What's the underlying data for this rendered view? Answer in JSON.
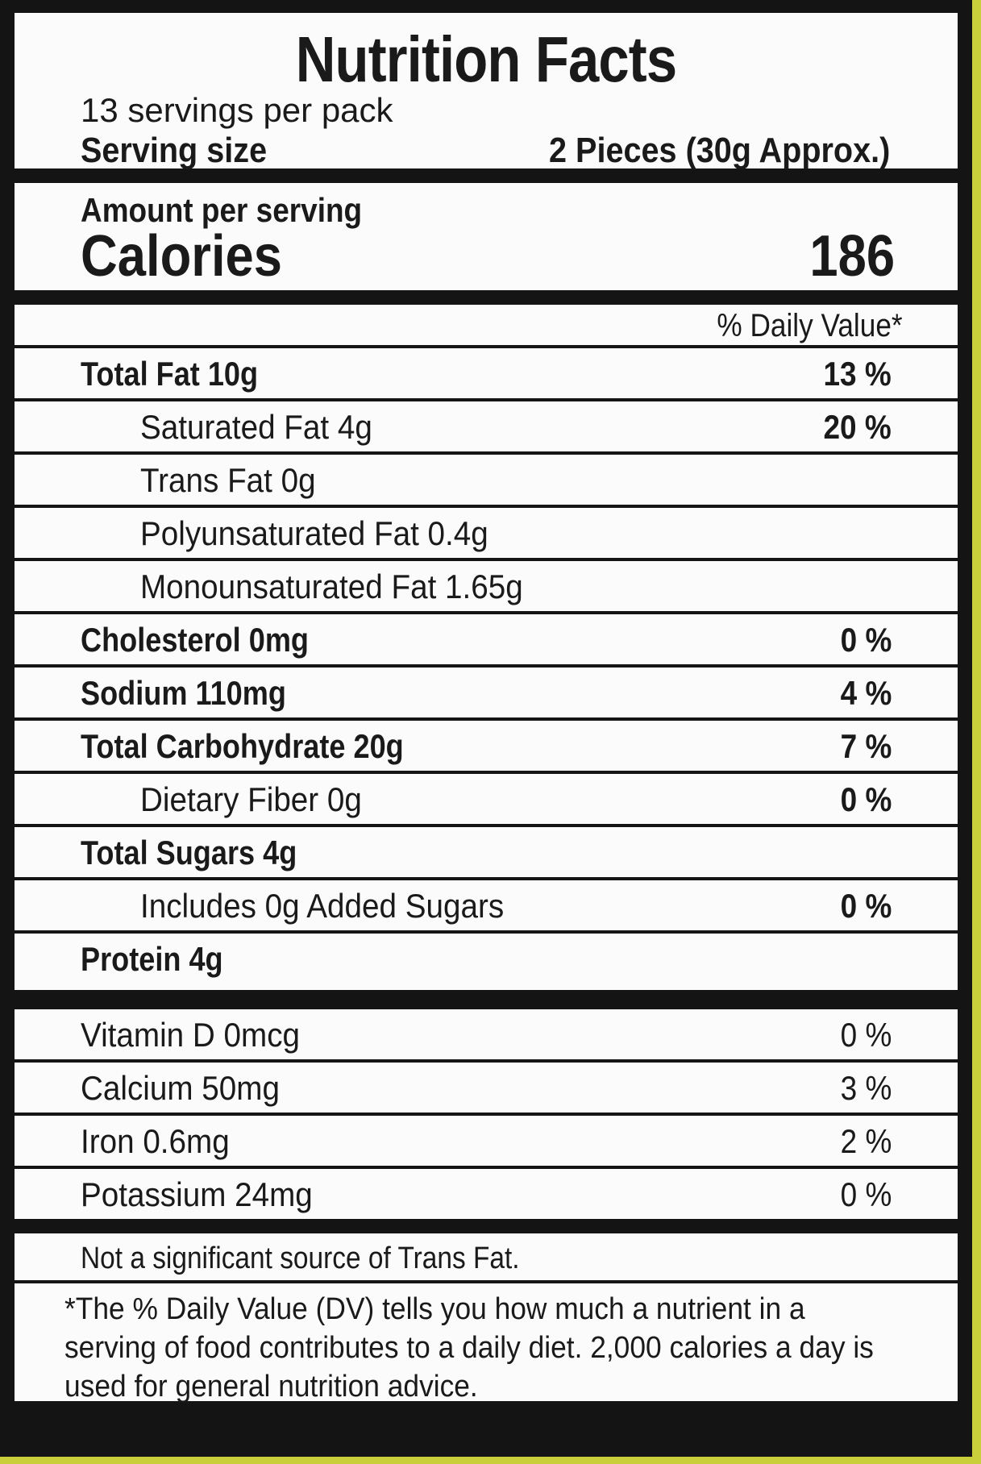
{
  "header": {
    "title": "Nutrition Facts",
    "servings_per_pack": "13 servings per pack",
    "serving_size_label": "Serving size",
    "serving_size_value": "2 Pieces (30g Approx.)"
  },
  "calories": {
    "amount_label": "Amount per serving",
    "label": "Calories",
    "value": "186"
  },
  "daily_value_header": "% Daily Value*",
  "nutrients": [
    {
      "name": "Total Fat 10g",
      "dv": "13 %"
    },
    {
      "name": "Saturated Fat 4g",
      "dv": "20 %"
    },
    {
      "name": "Trans Fat 0g",
      "dv": ""
    },
    {
      "name": "Polyunsaturated Fat 0.4g",
      "dv": ""
    },
    {
      "name": "Monounsaturated Fat 1.65g",
      "dv": ""
    },
    {
      "name": "Cholesterol 0mg",
      "dv": "0 %"
    },
    {
      "name": "Sodium 110mg",
      "dv": "4 %"
    },
    {
      "name": "Total Carbohydrate 20g",
      "dv": "7 %"
    },
    {
      "name": "Dietary Fiber 0g",
      "dv": "0 %"
    },
    {
      "name": "Total Sugars 4g",
      "dv": ""
    },
    {
      "name": "Includes 0g Added Sugars",
      "dv": "0 %"
    },
    {
      "name": "Protein 4g",
      "dv": ""
    }
  ],
  "vitamins": [
    {
      "name": "Vitamin D 0mcg",
      "dv": "0 %"
    },
    {
      "name": "Calcium 50mg",
      "dv": "3 %"
    },
    {
      "name": "Iron 0.6mg",
      "dv": "2 %"
    },
    {
      "name": "Potassium 24mg",
      "dv": "0 %"
    }
  ],
  "trans_fat_note": "Not a significant source of Trans Fat.",
  "footnote": "*The % Daily Value (DV) tells you how much a nutrient in a serving of food contributes to a daily diet. 2,000 calories a day is used for general nutrition advice.",
  "colors": {
    "background": "#c9cf3a",
    "border": "#141414",
    "panel": "#fbfbfb"
  }
}
